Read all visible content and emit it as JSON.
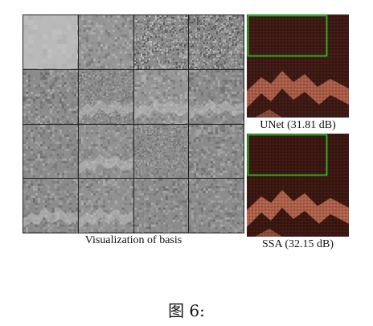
{
  "figure": {
    "basis_caption": "Visualization of basis",
    "results": [
      {
        "key": "unet",
        "caption": "UNet (31.81 dB)"
      },
      {
        "key": "ssa",
        "caption": "SSA (32.15 dB)"
      }
    ],
    "figure_label": "图 6:"
  },
  "colors": {
    "highlight_box": "#1fd11f",
    "image_dark": "#3a1813",
    "image_band": "#a85a45",
    "basis_gray": "#9a9a9a"
  }
}
